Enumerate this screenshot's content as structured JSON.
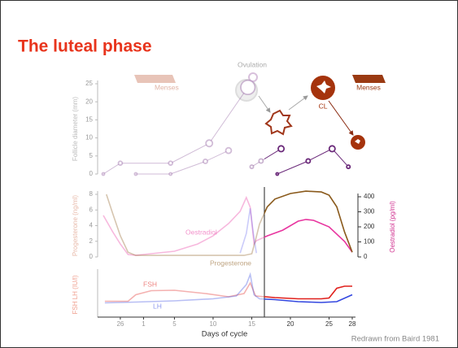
{
  "title": "The luteal phase",
  "footer": "Redrawn from Baird 1981",
  "chart_data": [
    {
      "type": "line",
      "ylabel": "Follicle diameter (mm)",
      "ylim": [
        0,
        25
      ],
      "yticks": [
        0,
        5,
        10,
        15,
        20,
        25
      ],
      "xlim": [
        -4.2,
        28
      ],
      "annotations": [
        "Menses",
        "Ovulation",
        "CL",
        "Menses"
      ],
      "series": [
        {
          "color": "#7a3f8c",
          "x": [
            -4.2,
            -2,
            4.5,
            9.5,
            14.5
          ],
          "values": [
            0,
            3,
            3,
            8.5,
            24
          ]
        },
        {
          "color": "#7a3f8c",
          "x": [
            0,
            4.5,
            9,
            12
          ],
          "values": [
            0,
            0,
            3.5,
            6.5
          ]
        },
        {
          "color": "#6b2a7a",
          "x": [
            15,
            16.2,
            18.8
          ],
          "values": [
            2,
            3.6,
            7
          ]
        },
        {
          "color": "#6b2a7a",
          "x": [
            18.3,
            22.3,
            25.4,
            27.5
          ],
          "values": [
            0,
            3.6,
            7,
            2
          ]
        }
      ]
    },
    {
      "type": "line",
      "ylabel": "Progesterone (ng/ml)",
      "y2label": "Oestradiol (pg/ml)",
      "ylim": [
        0,
        8
      ],
      "yticks": [
        0,
        2,
        4,
        6,
        8
      ],
      "y2lim": [
        0,
        400
      ],
      "y2ticks": [
        0,
        100,
        200,
        300,
        400
      ],
      "xlim": [
        -4.2,
        28
      ],
      "series": [
        {
          "name": "Oestradiol",
          "color": "#e8359f",
          "axis": "y2",
          "x": [
            -4.2,
            -3,
            -2,
            -1,
            0,
            5,
            8,
            10,
            12,
            13.5,
            14.3,
            14.8,
            15.3,
            15.6,
            17,
            19,
            21,
            22,
            23,
            25,
            27,
            28
          ],
          "values": [
            276,
            168,
            86,
            16,
            11,
            38,
            86,
            140,
            222,
            303,
            395,
            330,
            86,
            108,
            140,
            178,
            238,
            249,
            243,
            200,
            103,
            32
          ]
        },
        {
          "name": "Progesterone",
          "color": "#8a5a1c",
          "x": [
            -3.8,
            -3,
            -2,
            -1,
            0,
            1,
            5,
            10,
            14,
            15,
            15.5,
            16,
            17,
            18,
            20,
            22,
            24,
            25,
            26,
            27,
            28
          ],
          "values": [
            8,
            5.6,
            2.7,
            0.6,
            0.2,
            0.2,
            0.2,
            0.2,
            0.2,
            0.4,
            2.2,
            4.2,
            6.4,
            7.4,
            8.1,
            8.4,
            8.3,
            7.9,
            6.4,
            3.2,
            0.6
          ]
        },
        {
          "color": "#6a6cf0",
          "x": [
            13.5,
            14.3,
            14.8,
            15.2,
            15.6
          ],
          "values": [
            0.5,
            3,
            6.2,
            3,
            0.5
          ]
        }
      ]
    },
    {
      "type": "line",
      "ylabel": "FSH LH (IU/l)",
      "xlabel": "Days of cycle",
      "ylim": [
        0,
        11
      ],
      "xlim": [
        -4.2,
        28
      ],
      "xticks": [
        {
          "value": -2,
          "label": "26"
        },
        1,
        5,
        10,
        15,
        20,
        25,
        28
      ],
      "series": [
        {
          "name": "FSH",
          "color": "#e0201c",
          "x": [
            -4,
            -1,
            0,
            2,
            5,
            9,
            12,
            14,
            14.8,
            15.5,
            18,
            21,
            24,
            25,
            26,
            27,
            28
          ],
          "values": [
            3.9,
            3.9,
            5.5,
            6.5,
            6.6,
            5.8,
            5,
            5.8,
            8.4,
            5.2,
            4.8,
            4.5,
            4.5,
            4.7,
            7.1,
            7.6,
            7.6
          ]
        },
        {
          "name": "LH",
          "color": "#3347e0",
          "x": [
            -4,
            0,
            5,
            10,
            13,
            14.3,
            14.8,
            15.3,
            16,
            18,
            21,
            24,
            26,
            28
          ],
          "values": [
            3.5,
            3.7,
            4,
            4.5,
            5.2,
            8,
            10.5,
            5.5,
            4.5,
            4.3,
            3.8,
            3.6,
            3.8,
            5.5
          ]
        }
      ]
    }
  ]
}
